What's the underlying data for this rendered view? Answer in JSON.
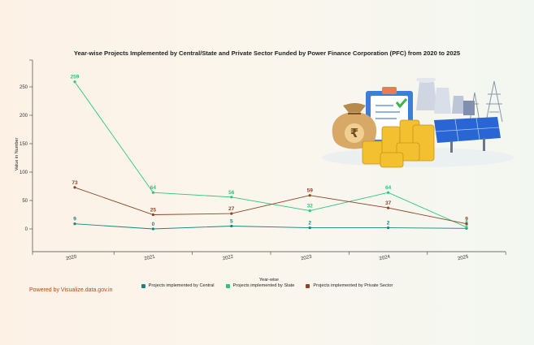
{
  "chart_data": {
    "type": "line",
    "title": "Year-wise Projects Implemented by Central/State and Private Sector Funded by Power Finance Corporation (PFC) from 2020 to 2025",
    "xlabel": "Year-wise",
    "ylabel": "Value in Number",
    "categories": [
      "2020",
      "2021",
      "2022",
      "2023",
      "2024",
      "2025"
    ],
    "yticks": [
      0,
      50,
      100,
      150,
      200,
      250
    ],
    "ylim": [
      -40,
      300
    ],
    "grid": false,
    "legend_position": "bottom",
    "series": [
      {
        "name": "Projects implemented by Central",
        "color": "#16847f",
        "values": [
          9,
          0,
          5,
          2,
          2,
          1
        ]
      },
      {
        "name": "Projects implemented by State",
        "color": "#2ac77a",
        "values": [
          259,
          64,
          56,
          32,
          64,
          3
        ]
      },
      {
        "name": "Projects implemented by Private Sector",
        "color": "#8d4424",
        "values": [
          73,
          25,
          27,
          59,
          37,
          9
        ]
      }
    ]
  },
  "credit": "Powered by Visualize.data.gov.in",
  "illustration": {
    "rupee_symbol": "₹",
    "icons": [
      "money-bag-icon",
      "coin-stack-icon",
      "clipboard-check-icon",
      "solar-panel-icon",
      "power-plant-icon",
      "transmission-tower-icon"
    ]
  }
}
